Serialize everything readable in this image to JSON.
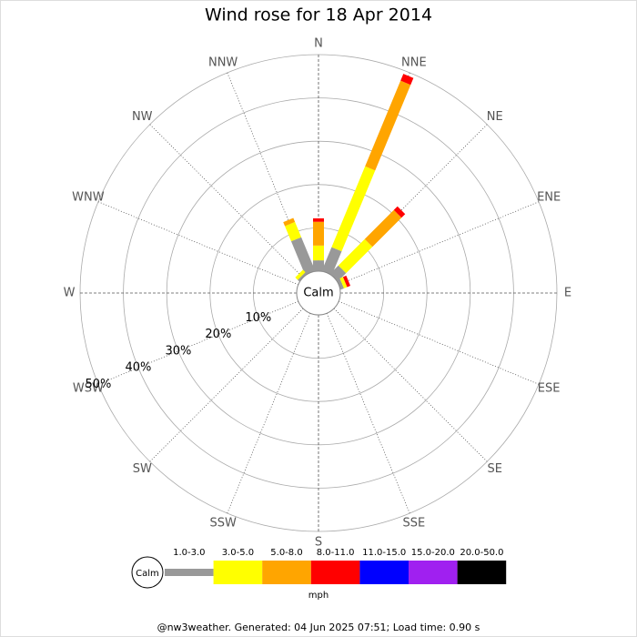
{
  "chart_data": {
    "type": "wind_rose",
    "title": "Wind rose for 18 Apr 2014",
    "directions": [
      "N",
      "NNE",
      "NE",
      "ENE",
      "E",
      "ESE",
      "SE",
      "SSE",
      "S",
      "SSW",
      "SW",
      "WSW",
      "W",
      "WNW",
      "NW",
      "NNW"
    ],
    "center_label": "Calm",
    "rlim": [
      0,
      50
    ],
    "rticks": [
      {
        "value": 10,
        "label": "10%"
      },
      {
        "value": 20,
        "label": "20%"
      },
      {
        "value": 30,
        "label": "30%"
      },
      {
        "value": 40,
        "label": "40%"
      },
      {
        "value": 50,
        "label": "50%"
      }
    ],
    "series": [
      {
        "name": "1.0-3.0",
        "color": "#999999",
        "values": [
          2.5,
          5.9,
          2.7,
          0.8,
          0,
          0,
          0,
          0,
          0,
          0,
          0,
          0,
          0,
          0,
          0.5,
          8.4
        ]
      },
      {
        "name": "3.0-5.0",
        "color": "#ffff00",
        "values": [
          3.4,
          20.2,
          8.6,
          0.8,
          0,
          0,
          0,
          0,
          0,
          0,
          0,
          0,
          0,
          0,
          0.8,
          3.8
        ]
      },
      {
        "name": "5.0-8.0",
        "color": "#ffa500",
        "values": [
          5.5,
          21.4,
          9.5,
          0,
          0,
          0,
          0,
          0,
          0,
          0,
          0,
          0,
          0,
          0,
          0,
          1.0
        ]
      },
      {
        "name": "8.0-11.0",
        "color": "#ff0000",
        "values": [
          0.8,
          1.7,
          1.2,
          0.8,
          0,
          0,
          0,
          0,
          0,
          0,
          0,
          0,
          0,
          0,
          0,
          0
        ]
      },
      {
        "name": "11.0-15.0",
        "color": "#0000ff",
        "values": [
          0,
          0,
          0,
          0,
          0,
          0,
          0,
          0,
          0,
          0,
          0,
          0,
          0,
          0,
          0,
          0
        ]
      },
      {
        "name": "15.0-20.0",
        "color": "#a020f0",
        "values": [
          0,
          0,
          0,
          0,
          0,
          0,
          0,
          0,
          0,
          0,
          0,
          0,
          0,
          0,
          0,
          0
        ]
      },
      {
        "name": "20.0-50.0",
        "color": "#000000",
        "values": [
          0,
          0,
          0,
          0,
          0,
          0,
          0,
          0,
          0,
          0,
          0,
          0,
          0,
          0,
          0,
          0
        ]
      }
    ],
    "legend_calm": "Calm",
    "legend_unit": "mph",
    "footer": "@nw3weather. Generated: 04 Jun 2025 07:51; Load time: 0.90 s"
  }
}
